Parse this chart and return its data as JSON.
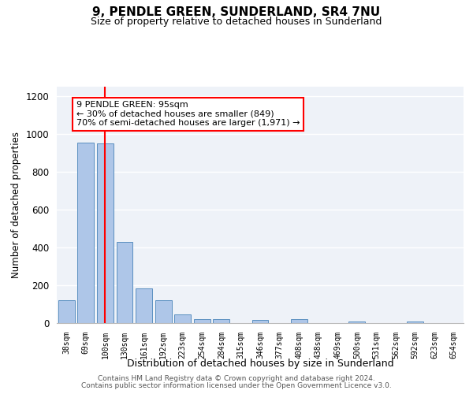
{
  "title1": "9, PENDLE GREEN, SUNDERLAND, SR4 7NU",
  "title2": "Size of property relative to detached houses in Sunderland",
  "xlabel": "Distribution of detached houses by size in Sunderland",
  "ylabel": "Number of detached properties",
  "categories": [
    "38sqm",
    "69sqm",
    "100sqm",
    "130sqm",
    "161sqm",
    "192sqm",
    "223sqm",
    "254sqm",
    "284sqm",
    "315sqm",
    "346sqm",
    "377sqm",
    "408sqm",
    "438sqm",
    "469sqm",
    "500sqm",
    "531sqm",
    "562sqm",
    "592sqm",
    "623sqm",
    "654sqm"
  ],
  "values": [
    120,
    955,
    950,
    430,
    185,
    120,
    45,
    20,
    20,
    0,
    15,
    0,
    20,
    0,
    0,
    10,
    0,
    0,
    10,
    0,
    0
  ],
  "bar_color": "#aec6e8",
  "bar_edge_color": "#5a8fc0",
  "red_line_x": 2,
  "annotation_title": "9 PENDLE GREEN: 95sqm",
  "annotation_line1": "← 30% of detached houses are smaller (849)",
  "annotation_line2": "70% of semi-detached houses are larger (1,971) →",
  "ylim": [
    0,
    1250
  ],
  "yticks": [
    0,
    200,
    400,
    600,
    800,
    1000,
    1200
  ],
  "bar_color_bg": "#eef2f8",
  "footer1": "Contains HM Land Registry data © Crown copyright and database right 2024.",
  "footer2": "Contains public sector information licensed under the Open Government Licence v3.0."
}
